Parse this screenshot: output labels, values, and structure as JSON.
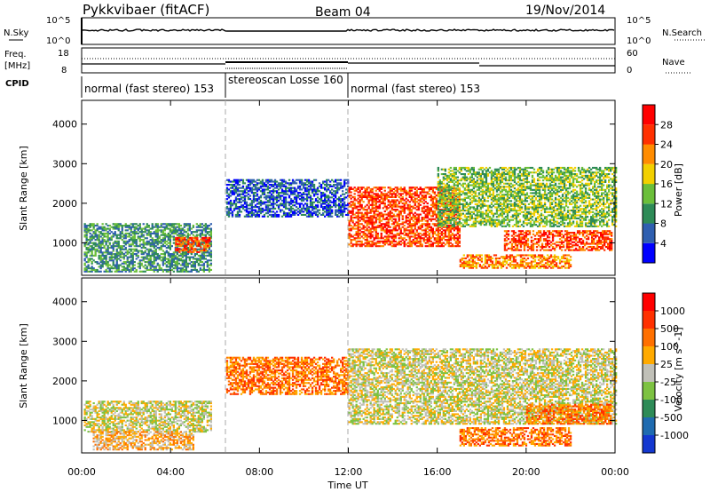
{
  "header": {
    "station": "Pykkvibaer (fitACF)",
    "beam": "Beam 04",
    "date": "19/Nov/2014"
  },
  "strip_nsky": {
    "left_label": "N.Sky",
    "right_label": "N.Search",
    "left_ticks": [
      "10^5",
      "10^0"
    ],
    "right_ticks": [
      "10^5",
      "10^0"
    ]
  },
  "strip_freq": {
    "left_label_1": "Freq.",
    "left_label_2": "[MHz]",
    "right_label": "Nave",
    "left_ticks": [
      "18",
      "8"
    ],
    "right_ticks": [
      "60",
      "0"
    ]
  },
  "cpid": {
    "label": "CPID",
    "segments": [
      {
        "text": "normal (fast stereo) 153",
        "start_hr": 0
      },
      {
        "text": "stereoscan Losse 160",
        "start_hr": 6.5
      },
      {
        "text": "normal (fast stereo) 153",
        "start_hr": 12
      }
    ]
  },
  "axes": {
    "xlabel": "Time UT",
    "x_ticks": [
      "00:00",
      "04:00",
      "08:00",
      "12:00",
      "16:00",
      "20:00",
      "00:00"
    ],
    "x_range_hr": [
      0,
      24
    ],
    "ylabel": "Slant Range [km]",
    "y_ticks": [
      "1000",
      "2000",
      "3000",
      "4000"
    ],
    "y_range_km": [
      180,
      4600
    ]
  },
  "power_scale": {
    "label": "Power [dB]",
    "ticks": [
      "4",
      "8",
      "12",
      "16",
      "20",
      "24",
      "28"
    ],
    "colors": [
      "#0000ff",
      "#2f5fb0",
      "#2e8b57",
      "#6bbf3a",
      "#f2d000",
      "#ff8c00",
      "#ff3000",
      "#ff0000"
    ]
  },
  "velocity_scale": {
    "label": "Velocity [m s^-1]",
    "ticks": [
      "1000",
      "500",
      "100",
      "25",
      "-25",
      "-100",
      "-500",
      "-1000"
    ],
    "colors": [
      "#1438d0",
      "#1f6bb0",
      "#2e8b57",
      "#7dc242",
      "#c0c0b8",
      "#ffaa00",
      "#ff7000",
      "#ff3000",
      "#ff0000"
    ]
  },
  "chart_data": {
    "type": "heatmap",
    "x_unit": "hour UT",
    "y_unit": "km",
    "power_regions": [
      {
        "t0": 0.1,
        "t1": 5.8,
        "r0": 260,
        "r1": 1500,
        "level": 2
      },
      {
        "t0": 4.2,
        "t1": 5.8,
        "r0": 750,
        "r1": 1150,
        "level": 6
      },
      {
        "t0": 6.5,
        "t1": 12.0,
        "r0": 1650,
        "r1": 2600,
        "level": 1
      },
      {
        "t0": 12.0,
        "t1": 17.0,
        "r0": 900,
        "r1": 2400,
        "level": 6
      },
      {
        "t0": 16.0,
        "t1": 24.0,
        "r0": 1400,
        "r1": 2900,
        "level": 3
      },
      {
        "t0": 19.0,
        "t1": 23.8,
        "r0": 800,
        "r1": 1300,
        "level": 6
      },
      {
        "t0": 17.0,
        "t1": 22.0,
        "r0": 350,
        "r1": 700,
        "level": 5
      }
    ],
    "velocity_regions": [
      {
        "t0": 0.1,
        "t1": 5.8,
        "r0": 700,
        "r1": 1500,
        "level": 4
      },
      {
        "t0": 0.5,
        "t1": 5.0,
        "r0": 250,
        "r1": 700,
        "level": 5
      },
      {
        "t0": 6.5,
        "t1": 12.0,
        "r0": 1650,
        "r1": 2600,
        "level": 6
      },
      {
        "t0": 12.0,
        "t1": 24.0,
        "r0": 900,
        "r1": 2800,
        "level": 4
      },
      {
        "t0": 17.0,
        "t1": 22.0,
        "r0": 350,
        "r1": 800,
        "level": 6
      },
      {
        "t0": 20.0,
        "t1": 23.8,
        "r0": 900,
        "r1": 1400,
        "level": 6
      }
    ]
  }
}
